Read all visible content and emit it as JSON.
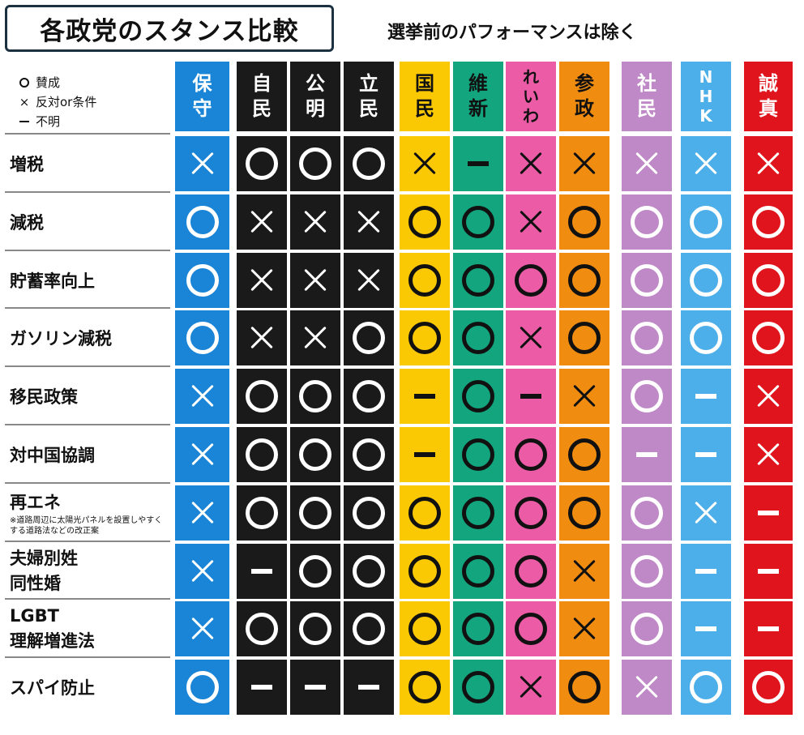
{
  "title": "各政党のスタンス比較",
  "subtitle": "選挙前のパフォーマンスは除く",
  "legend": [
    {
      "icon": "circle",
      "label": "賛成"
    },
    {
      "icon": "cross",
      "label": "反対or条件"
    },
    {
      "icon": "dash",
      "label": "不明"
    }
  ],
  "rows": [
    {
      "label": "増税"
    },
    {
      "label": "減税"
    },
    {
      "label": "貯蓄率向上"
    },
    {
      "label": "ガソリン減税"
    },
    {
      "label": "移民政策"
    },
    {
      "label": "対中国協調"
    },
    {
      "label": "再エネ",
      "note": "※道路周辺に太陽光パネルを設置しやすくする道路法などの改正案"
    },
    {
      "label": "夫婦別姓\n同性婚"
    },
    {
      "label": "LGBT\n理解増進法"
    },
    {
      "label": "スパイ防止"
    }
  ],
  "parties": [
    {
      "name": "保守",
      "color": "#1a85d6",
      "header_text": "#ffffff",
      "mark_color": "#ffffff",
      "marks": [
        "x",
        "o",
        "o",
        "o",
        "x",
        "x",
        "x",
        "x",
        "x",
        "o"
      ]
    },
    {
      "name": "自民",
      "color": "#1a1a1a",
      "header_text": "#ffffff",
      "mark_color": "#ffffff",
      "marks": [
        "o",
        "x",
        "x",
        "x",
        "o",
        "o",
        "o",
        "-",
        "o",
        "-"
      ]
    },
    {
      "name": "公明",
      "color": "#1a1a1a",
      "header_text": "#ffffff",
      "mark_color": "#ffffff",
      "marks": [
        "o",
        "x",
        "x",
        "x",
        "o",
        "o",
        "o",
        "o",
        "o",
        "-"
      ]
    },
    {
      "name": "立民",
      "color": "#1a1a1a",
      "header_text": "#ffffff",
      "mark_color": "#ffffff",
      "marks": [
        "o",
        "x",
        "x",
        "o",
        "o",
        "o",
        "o",
        "o",
        "o",
        "-"
      ]
    },
    {
      "name": "国民",
      "color": "#fbc804",
      "header_text": "#111111",
      "mark_color": "#111111",
      "marks": [
        "x",
        "o",
        "o",
        "o",
        "-",
        "-",
        "o",
        "o",
        "o",
        "o"
      ]
    },
    {
      "name": "維新",
      "color": "#13a57e",
      "header_text": "#111111",
      "mark_color": "#111111",
      "marks": [
        "-",
        "o",
        "o",
        "o",
        "o",
        "o",
        "o",
        "o",
        "o",
        "o"
      ]
    },
    {
      "name": "れいわ",
      "color": "#eb5ba6",
      "header_text": "#111111",
      "mark_color": "#111111",
      "marks": [
        "x",
        "x",
        "o",
        "x",
        "-",
        "o",
        "o",
        "o",
        "o",
        "x"
      ]
    },
    {
      "name": "参政",
      "color": "#f08c10",
      "header_text": "#111111",
      "mark_color": "#111111",
      "marks": [
        "x",
        "o",
        "o",
        "o",
        "x",
        "o",
        "o",
        "x",
        "x",
        "o"
      ]
    },
    {
      "name": "社民",
      "color": "#bf88c6",
      "header_text": "#ffffff",
      "mark_color": "#ffffff",
      "marks": [
        "x",
        "o",
        "o",
        "o",
        "o",
        "-",
        "o",
        "o",
        "o",
        "x"
      ]
    },
    {
      "name": "NHK",
      "color": "#4dafea",
      "header_text": "#ffffff",
      "mark_color": "#ffffff",
      "marks": [
        "x",
        "o",
        "o",
        "o",
        "-",
        "-",
        "x",
        "-",
        "-",
        "o"
      ]
    },
    {
      "name": "誠真",
      "color": "#e0141c",
      "header_text": "#ffffff",
      "mark_color": "#ffffff",
      "marks": [
        "x",
        "o",
        "o",
        "o",
        "x",
        "x",
        "-",
        "-",
        "-",
        "o"
      ]
    }
  ]
}
